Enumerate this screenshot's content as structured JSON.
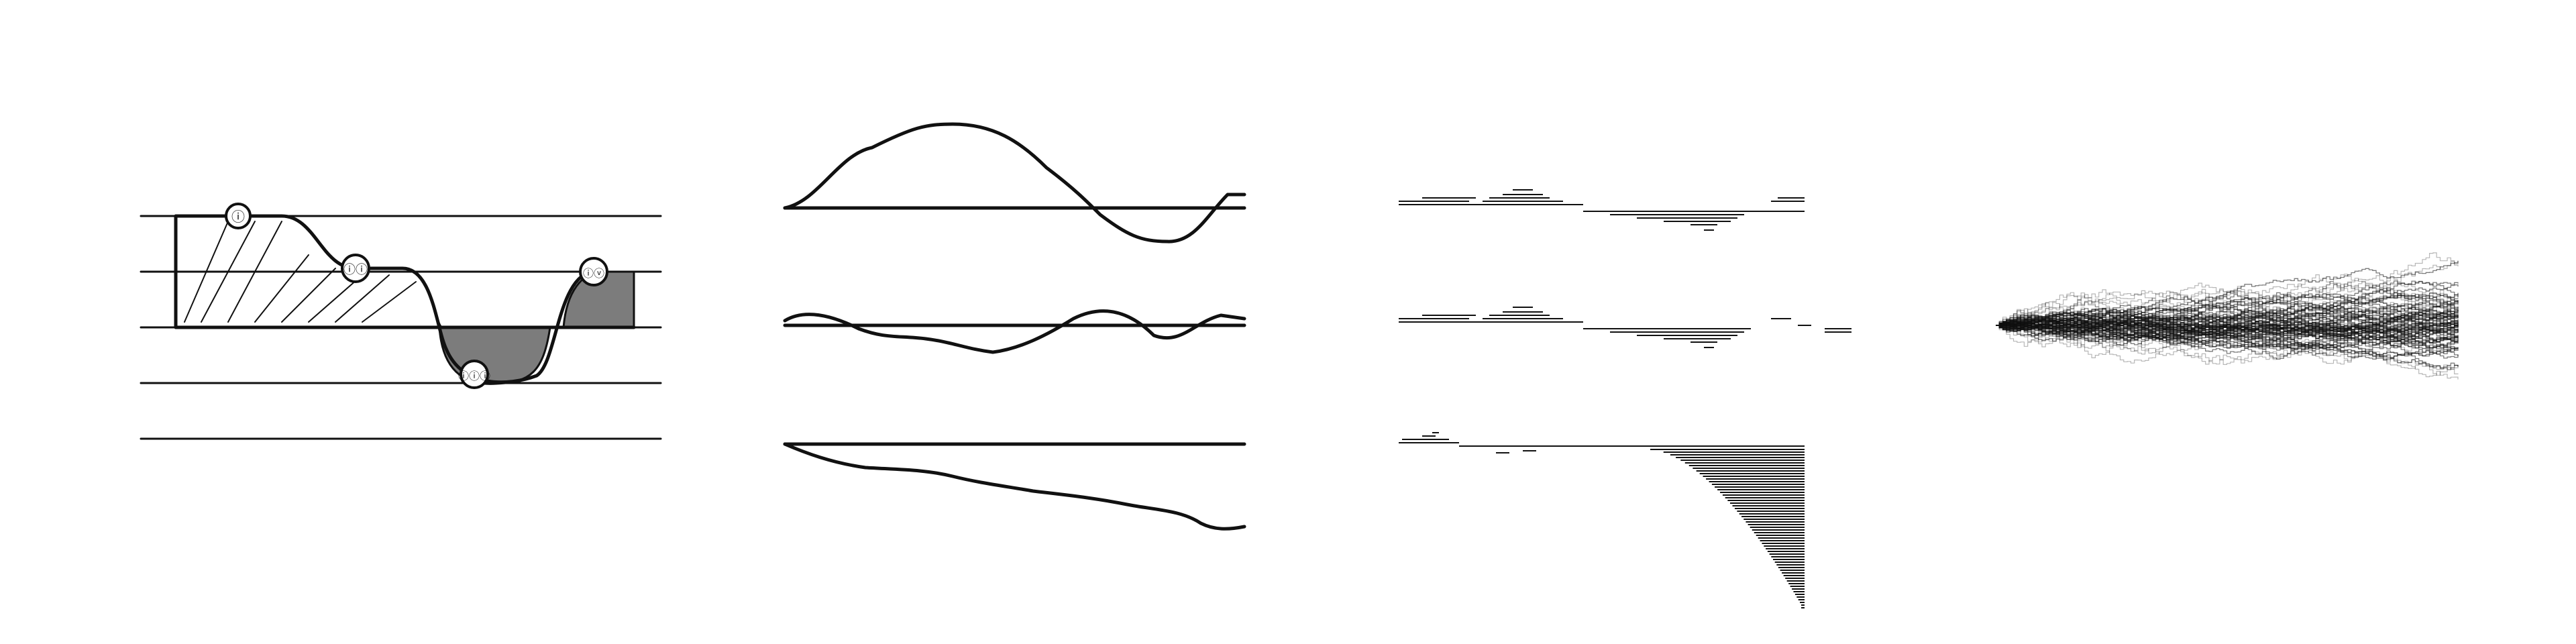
{
  "panels": [
    {
      "name": "hand-sketch",
      "markers": [
        "ⓘ",
        "ⓘⓘ",
        "ⓘⓘⓘ",
        "ⓘⓥ"
      ]
    },
    {
      "name": "smooth-curves"
    },
    {
      "name": "bar-histograms"
    },
    {
      "name": "random-walks"
    }
  ],
  "colors": {
    "ink": "#111111",
    "faint": "#888888",
    "background": "#ffffff"
  }
}
